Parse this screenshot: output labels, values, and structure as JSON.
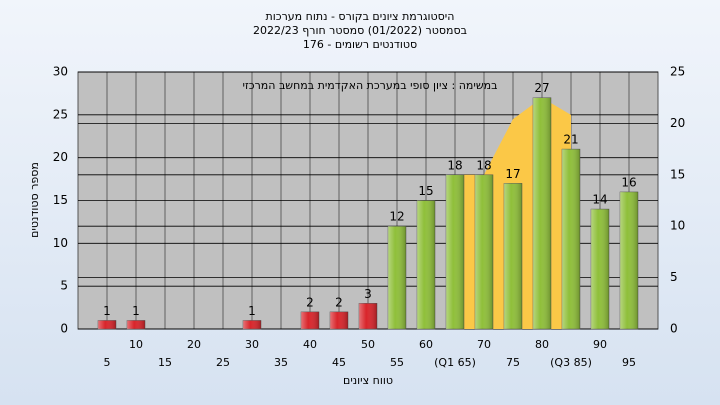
{
  "chart_data": {
    "type": "bar",
    "title": "היסטוגרמת ציונים בקורס - נתוח מערכות",
    "subtitle": "בסמסטר  (01/2022)  סמסטר חורף  2022/23",
    "subtitle2": "סטודנטים רשומים - 176",
    "annotation": "במשימה : ציון סופי במערכת האקדמית במחשב המרכזי",
    "x_label": "טווח ציונים",
    "y_label": "מספר סטודנטים",
    "x": [
      5,
      10,
      30,
      40,
      45,
      50,
      55,
      60,
      65,
      70,
      75,
      80,
      85,
      90,
      95
    ],
    "values": [
      1,
      1,
      1,
      2,
      2,
      3,
      12,
      15,
      18,
      18,
      17,
      27,
      21,
      14,
      16
    ],
    "colors": [
      "#d9252b",
      "#d9252b",
      "#d9252b",
      "#d9252b",
      "#d9252b",
      "#d9252b",
      "#8fbf3a",
      "#8fbf3a",
      "#8fbf3a",
      "#8fbf3a",
      "#8fbf3a",
      "#8fbf3a",
      "#8fbf3a",
      "#8fbf3a",
      "#8fbf3a"
    ],
    "area": {
      "x": [
        65,
        70,
        75,
        80,
        85
      ],
      "values": [
        18,
        18,
        24.5,
        27,
        25
      ],
      "color": "#fbc847"
    },
    "xlim": [
      0,
      100
    ],
    "xticks": [
      5,
      10,
      15,
      20,
      25,
      30,
      35,
      40,
      45,
      50,
      55,
      60,
      {
        "value": 65,
        "label": "(Q1 65)"
      },
      70,
      75,
      80,
      {
        "value": 85,
        "label": "(Q3 85)"
      },
      90,
      95
    ],
    "ylim": [
      0,
      30
    ],
    "yticks": [
      0,
      5,
      10,
      15,
      20,
      25,
      30
    ],
    "y2lim": [
      0,
      25
    ],
    "y2ticks": [
      0,
      5,
      10,
      15,
      20,
      25
    ],
    "grid": true
  }
}
